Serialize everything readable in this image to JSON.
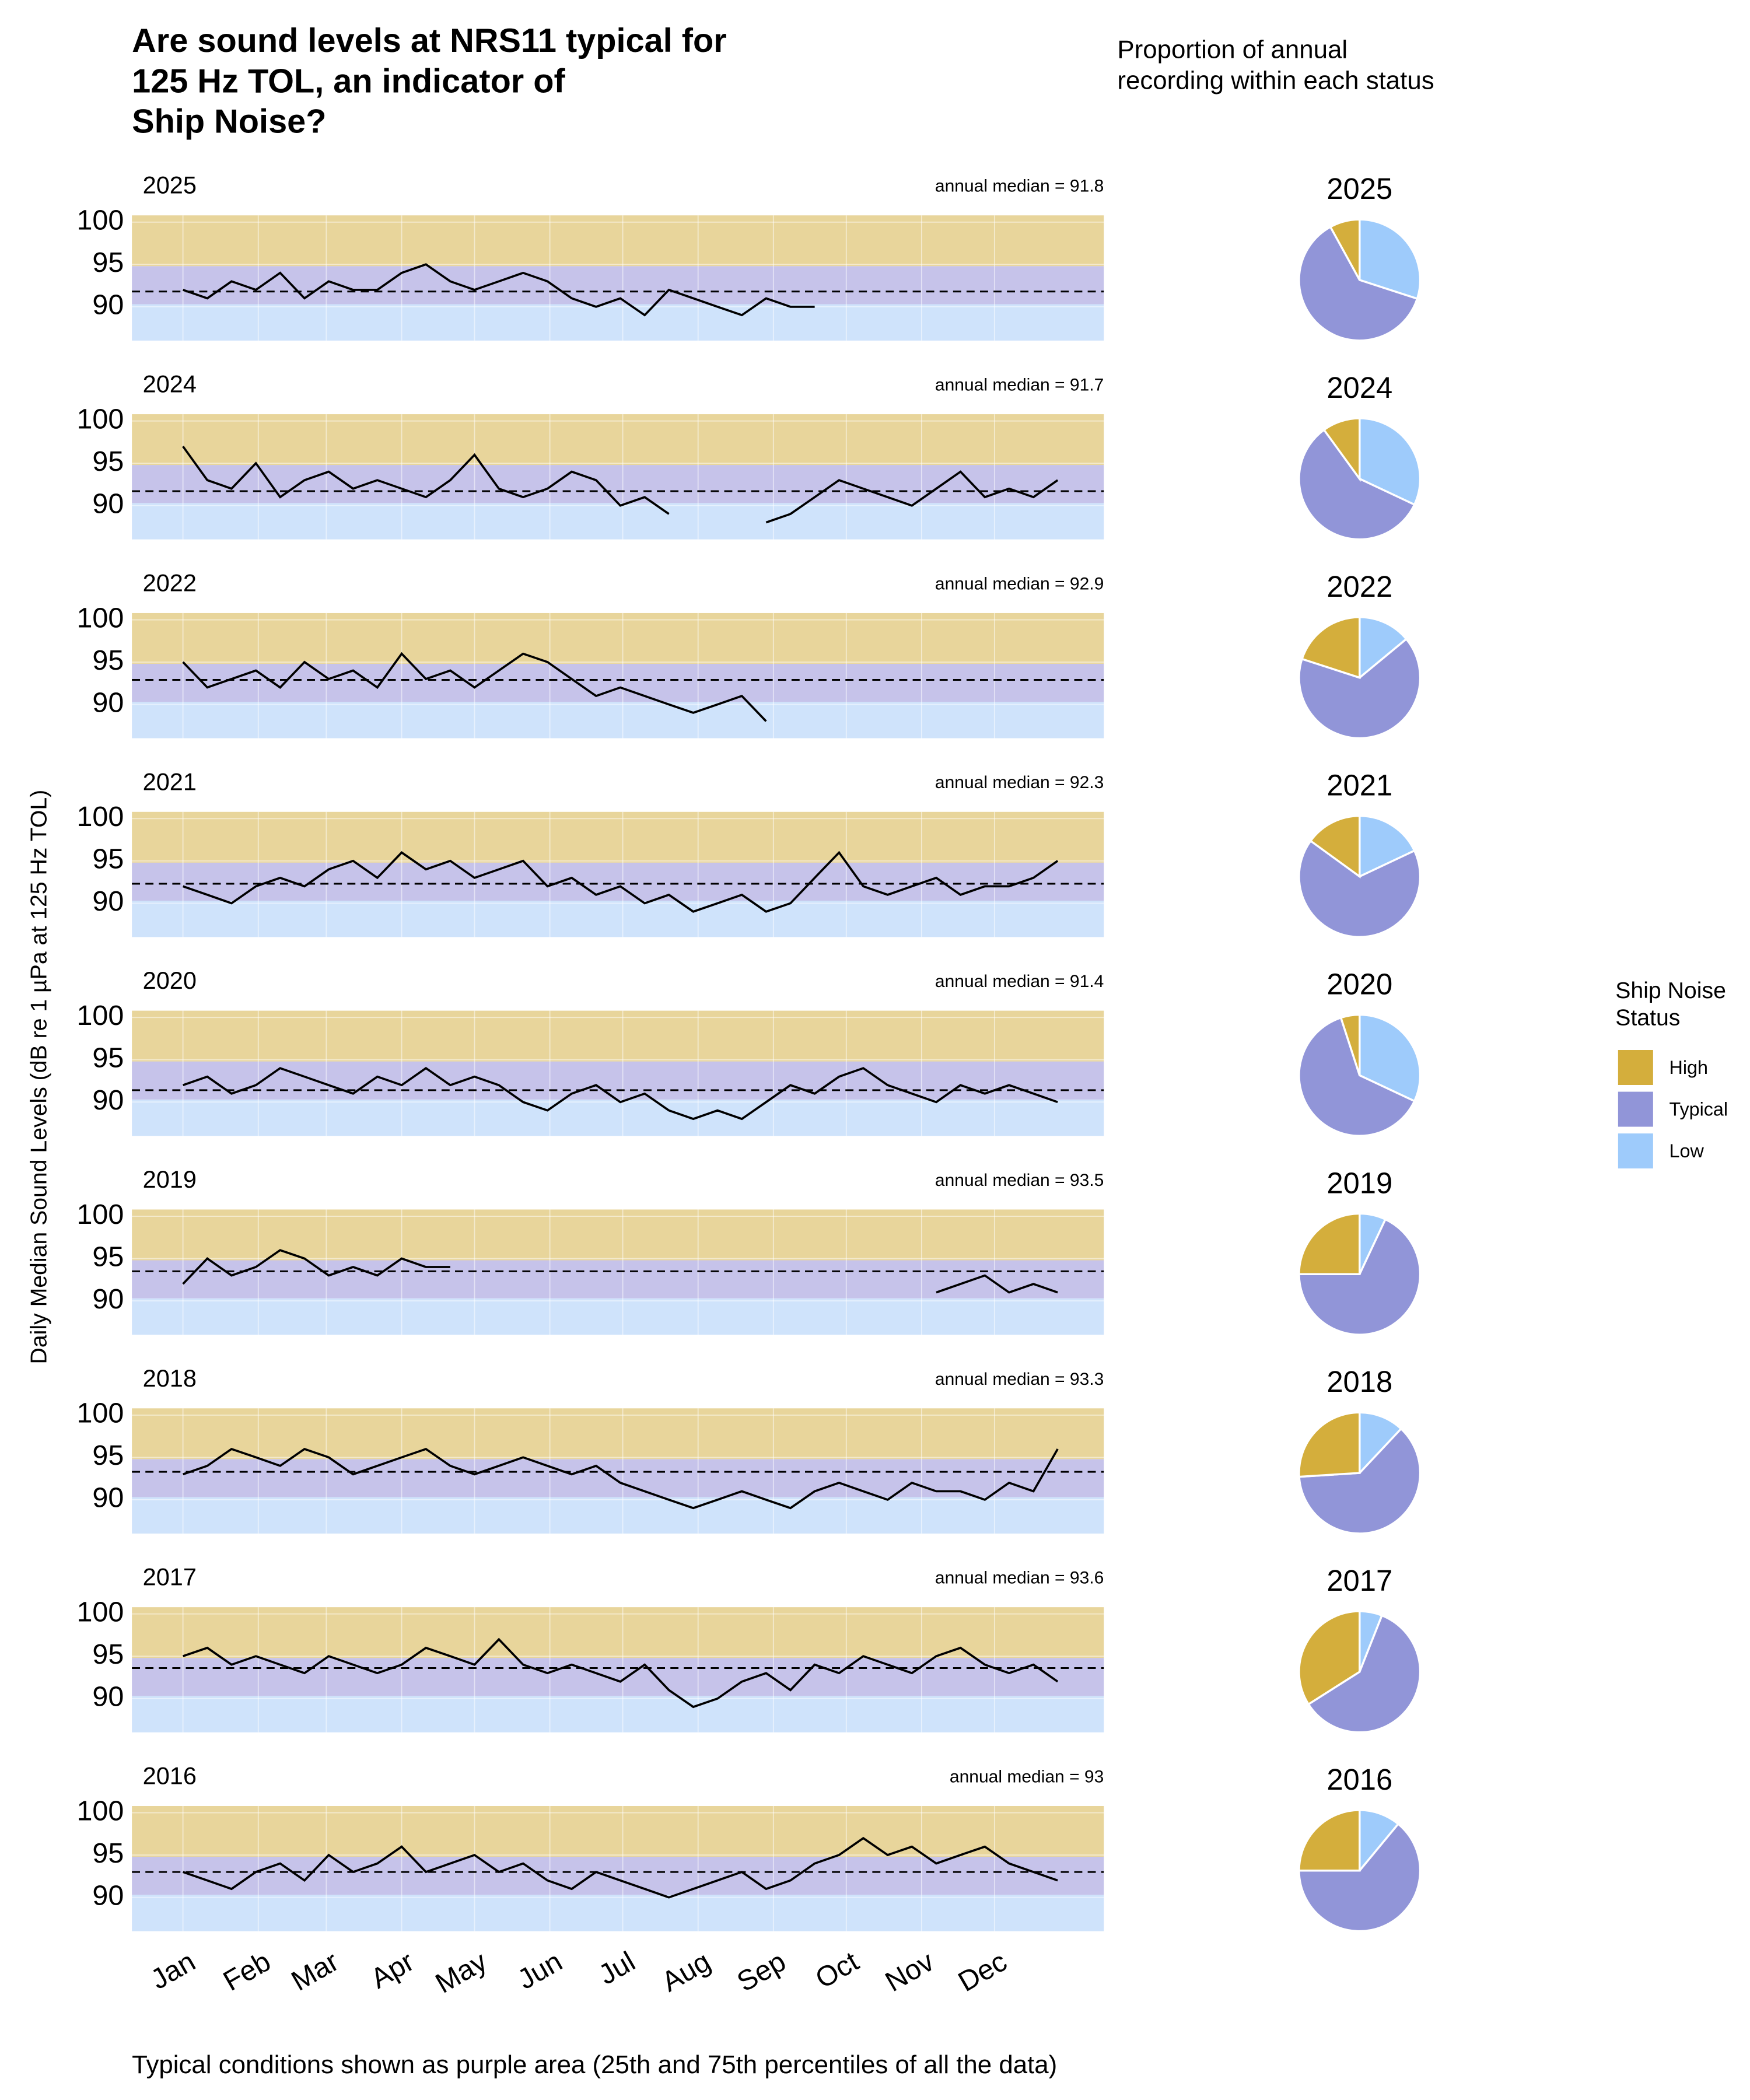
{
  "title": [
    "Are sound levels at NRS11 typical for",
    "125 Hz TOL, an indicator of",
    "Ship Noise?"
  ],
  "pie_heading": [
    "Proportion of annual",
    "recording within each status"
  ],
  "y_label": "Daily Median Sound Levels (dB re 1 µPa at 125 Hz TOL)",
  "caption": "Typical conditions shown as purple area (25th and 75th percentiles of all the data)",
  "legend_title": [
    "Ship Noise",
    "Status"
  ],
  "axes": {
    "xlim": [
      -20,
      380
    ],
    "xticks": [
      {
        "value": 1,
        "label": "Jan"
      },
      {
        "value": 32,
        "label": "Feb"
      },
      {
        "value": 60,
        "label": "Mar"
      },
      {
        "value": 91,
        "label": "Apr"
      },
      {
        "value": 121,
        "label": "May"
      },
      {
        "value": 152,
        "label": "Jun"
      },
      {
        "value": 182,
        "label": "Jul"
      },
      {
        "value": 213,
        "label": "Aug"
      },
      {
        "value": 244,
        "label": "Sep"
      },
      {
        "value": 274,
        "label": "Oct"
      },
      {
        "value": 305,
        "label": "Nov"
      },
      {
        "value": 335,
        "label": "Dec"
      }
    ],
    "ylim": [
      86,
      100.8
    ],
    "yticks": [
      90,
      95,
      100
    ],
    "thresholds": [
      90.3,
      94.8
    ],
    "band_colors": [
      "#cfe3fb",
      "#c6c3ea",
      "#e8d59b"
    ],
    "line_color": "#000000"
  },
  "chart_data": [
    {
      "type": "line",
      "title": "2025",
      "annotation": "annual median = 91.8",
      "median": 91.8,
      "x": [
        1,
        11,
        21,
        31,
        41,
        51,
        61,
        71,
        81,
        91,
        101,
        111,
        121,
        131,
        141,
        151,
        161,
        171,
        181,
        191,
        201,
        211,
        221,
        231,
        241,
        251,
        261
      ],
      "values": [
        92,
        91,
        93,
        92,
        94,
        91,
        93,
        92,
        92,
        94,
        95,
        93,
        92,
        93,
        94,
        93,
        91,
        90,
        91,
        89,
        92,
        91,
        90,
        89,
        91,
        90,
        90
      ]
    },
    {
      "type": "line",
      "title": "2024",
      "annotation": "annual median = 91.7",
      "median": 91.7,
      "x": [
        1,
        11,
        21,
        31,
        41,
        51,
        61,
        71,
        81,
        91,
        101,
        111,
        121,
        131,
        141,
        151,
        161,
        171,
        181,
        191,
        201,
        211,
        221,
        231,
        241,
        251,
        261,
        271,
        281,
        291,
        301,
        311,
        321,
        331,
        341,
        351,
        361
      ],
      "values": [
        97,
        93,
        92,
        95,
        91,
        93,
        94,
        92,
        93,
        92,
        91,
        93,
        96,
        92,
        91,
        92,
        94,
        93,
        90,
        91,
        89,
        null,
        null,
        null,
        88,
        89,
        91,
        93,
        92,
        91,
        90,
        92,
        94,
        91,
        92,
        91,
        93
      ]
    },
    {
      "type": "line",
      "title": "2022",
      "annotation": "annual median = 92.9",
      "median": 92.9,
      "x": [
        1,
        11,
        21,
        31,
        41,
        51,
        61,
        71,
        81,
        91,
        101,
        111,
        121,
        131,
        141,
        151,
        161,
        171,
        181,
        191,
        201,
        211,
        221,
        231,
        241
      ],
      "values": [
        95,
        92,
        93,
        94,
        92,
        95,
        93,
        94,
        92,
        96,
        93,
        94,
        92,
        94,
        96,
        95,
        93,
        91,
        92,
        91,
        90,
        89,
        90,
        91,
        88
      ]
    },
    {
      "type": "line",
      "title": "2021",
      "annotation": "annual median = 92.3",
      "median": 92.3,
      "x": [
        1,
        11,
        21,
        31,
        41,
        51,
        61,
        71,
        81,
        91,
        101,
        111,
        121,
        131,
        141,
        151,
        161,
        171,
        181,
        191,
        201,
        211,
        221,
        231,
        241,
        251,
        261,
        271,
        281,
        291,
        301,
        311,
        321,
        331,
        341,
        351,
        361
      ],
      "values": [
        92,
        91,
        90,
        92,
        93,
        92,
        94,
        95,
        93,
        96,
        94,
        95,
        93,
        94,
        95,
        92,
        93,
        91,
        92,
        90,
        91,
        89,
        90,
        91,
        89,
        90,
        93,
        96,
        92,
        91,
        92,
        93,
        91,
        92,
        92,
        93,
        95
      ]
    },
    {
      "type": "line",
      "title": "2020",
      "annotation": "annual median = 91.4",
      "median": 91.4,
      "x": [
        1,
        11,
        21,
        31,
        41,
        51,
        61,
        71,
        81,
        91,
        101,
        111,
        121,
        131,
        141,
        151,
        161,
        171,
        181,
        191,
        201,
        211,
        221,
        231,
        241,
        251,
        261,
        271,
        281,
        291,
        301,
        311,
        321,
        331,
        341,
        351,
        361
      ],
      "values": [
        92,
        93,
        91,
        92,
        94,
        93,
        92,
        91,
        93,
        92,
        94,
        92,
        93,
        92,
        90,
        89,
        91,
        92,
        90,
        91,
        89,
        88,
        89,
        88,
        90,
        92,
        91,
        93,
        94,
        92,
        91,
        90,
        92,
        91,
        92,
        91,
        90
      ]
    },
    {
      "type": "line",
      "title": "2019",
      "annotation": "annual median = 93.5",
      "median": 93.5,
      "x": [
        1,
        11,
        21,
        31,
        41,
        51,
        61,
        71,
        81,
        91,
        101,
        111,
        121,
        131,
        141,
        151,
        161,
        171,
        181,
        191,
        201,
        211,
        221,
        231,
        241,
        251,
        261,
        271,
        281,
        291,
        301,
        311,
        321,
        331,
        341,
        351,
        361
      ],
      "values": [
        92,
        95,
        93,
        94,
        96,
        95,
        93,
        94,
        93,
        95,
        94,
        94,
        null,
        null,
        null,
        null,
        null,
        null,
        null,
        null,
        null,
        null,
        null,
        null,
        null,
        null,
        null,
        null,
        null,
        null,
        null,
        91,
        92,
        93,
        91,
        92,
        91
      ]
    },
    {
      "type": "line",
      "title": "2018",
      "annotation": "annual median = 93.3",
      "median": 93.3,
      "x": [
        1,
        11,
        21,
        31,
        41,
        51,
        61,
        71,
        81,
        91,
        101,
        111,
        121,
        131,
        141,
        151,
        161,
        171,
        181,
        191,
        201,
        211,
        221,
        231,
        241,
        251,
        261,
        271,
        281,
        291,
        301,
        311,
        321,
        331,
        341,
        351,
        361
      ],
      "values": [
        93,
        94,
        96,
        95,
        94,
        96,
        95,
        93,
        94,
        95,
        96,
        94,
        93,
        94,
        95,
        94,
        93,
        94,
        92,
        91,
        90,
        89,
        90,
        91,
        90,
        89,
        91,
        92,
        91,
        90,
        92,
        91,
        91,
        90,
        92,
        91,
        96
      ]
    },
    {
      "type": "line",
      "title": "2017",
      "annotation": "annual median = 93.6",
      "median": 93.6,
      "x": [
        1,
        11,
        21,
        31,
        41,
        51,
        61,
        71,
        81,
        91,
        101,
        111,
        121,
        131,
        141,
        151,
        161,
        171,
        181,
        191,
        201,
        211,
        221,
        231,
        241,
        251,
        261,
        271,
        281,
        291,
        301,
        311,
        321,
        331,
        341,
        351,
        361
      ],
      "values": [
        95,
        96,
        94,
        95,
        94,
        93,
        95,
        94,
        93,
        94,
        96,
        95,
        94,
        97,
        94,
        93,
        94,
        93,
        92,
        94,
        91,
        89,
        90,
        92,
        93,
        91,
        94,
        93,
        95,
        94,
        93,
        95,
        96,
        94,
        93,
        94,
        92
      ]
    },
    {
      "type": "line",
      "title": "2016",
      "annotation": "annual median = 93",
      "median": 93,
      "x": [
        1,
        11,
        21,
        31,
        41,
        51,
        61,
        71,
        81,
        91,
        101,
        111,
        121,
        131,
        141,
        151,
        161,
        171,
        181,
        191,
        201,
        211,
        221,
        231,
        241,
        251,
        261,
        271,
        281,
        291,
        301,
        311,
        321,
        331,
        341,
        351,
        361
      ],
      "values": [
        93,
        92,
        91,
        93,
        94,
        92,
        95,
        93,
        94,
        96,
        93,
        94,
        95,
        93,
        94,
        92,
        91,
        93,
        92,
        91,
        90,
        91,
        92,
        93,
        91,
        92,
        94,
        95,
        97,
        95,
        96,
        94,
        95,
        96,
        94,
        93,
        92
      ]
    },
    {
      "type": "pie",
      "title": "2025",
      "categories": [
        "High",
        "Typical",
        "Low"
      ],
      "colors": [
        "#d4ae3c",
        "#9195d8",
        "#9ecbfb"
      ],
      "values": [
        8,
        62,
        30
      ]
    },
    {
      "type": "pie",
      "title": "2024",
      "categories": [
        "High",
        "Typical",
        "Low"
      ],
      "colors": [
        "#d4ae3c",
        "#9195d8",
        "#9ecbfb"
      ],
      "values": [
        10,
        58,
        32
      ]
    },
    {
      "type": "pie",
      "title": "2022",
      "categories": [
        "High",
        "Typical",
        "Low"
      ],
      "colors": [
        "#d4ae3c",
        "#9195d8",
        "#9ecbfb"
      ],
      "values": [
        20,
        66,
        14
      ]
    },
    {
      "type": "pie",
      "title": "2021",
      "categories": [
        "High",
        "Typical",
        "Low"
      ],
      "colors": [
        "#d4ae3c",
        "#9195d8",
        "#9ecbfb"
      ],
      "values": [
        15,
        67,
        18
      ]
    },
    {
      "type": "pie",
      "title": "2020",
      "categories": [
        "High",
        "Typical",
        "Low"
      ],
      "colors": [
        "#d4ae3c",
        "#9195d8",
        "#9ecbfb"
      ],
      "values": [
        5,
        63,
        32
      ]
    },
    {
      "type": "pie",
      "title": "2019",
      "categories": [
        "High",
        "Typical",
        "Low"
      ],
      "colors": [
        "#d4ae3c",
        "#9195d8",
        "#9ecbfb"
      ],
      "values": [
        25,
        68,
        7
      ]
    },
    {
      "type": "pie",
      "title": "2018",
      "categories": [
        "High",
        "Typical",
        "Low"
      ],
      "colors": [
        "#d4ae3c",
        "#9195d8",
        "#9ecbfb"
      ],
      "values": [
        26,
        62,
        12
      ]
    },
    {
      "type": "pie",
      "title": "2017",
      "categories": [
        "High",
        "Typical",
        "Low"
      ],
      "colors": [
        "#d4ae3c",
        "#9195d8",
        "#9ecbfb"
      ],
      "values": [
        34,
        60,
        6
      ]
    },
    {
      "type": "pie",
      "title": "2016",
      "categories": [
        "High",
        "Typical",
        "Low"
      ],
      "colors": [
        "#d4ae3c",
        "#9195d8",
        "#9ecbfb"
      ],
      "values": [
        25,
        64,
        11
      ]
    }
  ]
}
